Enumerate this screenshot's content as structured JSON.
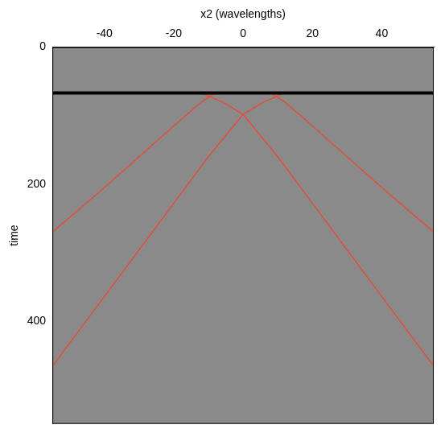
{
  "chart_data": {
    "type": "line",
    "x_label": "x2 (wavelengths)",
    "y_label": "time",
    "xlim": [
      -55,
      55
    ],
    "ylim": [
      0,
      550
    ],
    "xticks": [
      -40,
      -20,
      0,
      20,
      40
    ],
    "yticks": [
      0,
      200,
      400
    ],
    "grid": false,
    "series": [
      {
        "color": "#000000",
        "x": [
          -55,
          55
        ],
        "values": [
          67,
          67
        ]
      },
      {
        "color": "#e0503a",
        "x": [
          -55,
          -40,
          -30,
          -20,
          -12,
          -8
        ],
        "values": [
          270,
          205,
          160,
          115,
          80,
          67
        ]
      },
      {
        "color": "#e0503a",
        "x": [
          8,
          12,
          20,
          30,
          40,
          55
        ],
        "values": [
          67,
          80,
          115,
          160,
          205,
          270
        ]
      },
      {
        "color": "#e0503a",
        "x": [
          -55,
          -40,
          -30,
          -20,
          -10,
          0,
          6,
          12
        ],
        "values": [
          466,
          364,
          296,
          228,
          160,
          98,
          80,
          67
        ]
      },
      {
        "color": "#e0503a",
        "x": [
          -12,
          -6,
          0,
          10,
          20,
          30,
          40,
          55
        ],
        "values": [
          67,
          80,
          98,
          160,
          228,
          296,
          364,
          466
        ]
      }
    ]
  }
}
